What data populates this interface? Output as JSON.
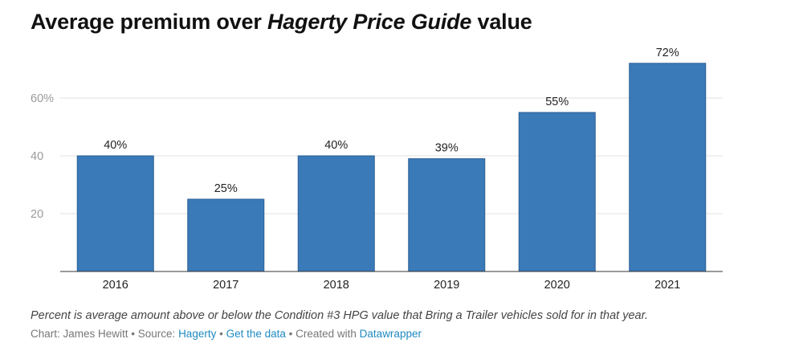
{
  "title": {
    "prefix": "Average premium over ",
    "emphasis": "Hagerty Price Guide",
    "suffix": " value"
  },
  "chart_data": {
    "type": "bar",
    "title": "Average premium over Hagerty Price Guide value",
    "categories": [
      "2016",
      "2017",
      "2018",
      "2019",
      "2020",
      "2021"
    ],
    "values": [
      40,
      25,
      40,
      39,
      55,
      72
    ],
    "value_labels": [
      "40%",
      "25%",
      "40%",
      "39%",
      "55%",
      "72%"
    ],
    "ylim": [
      0,
      75
    ],
    "yticks": [
      20,
      40,
      60
    ],
    "ytick_labels": [
      "20",
      "40",
      "60%"
    ],
    "xlabel": "",
    "ylabel": "",
    "grid": true,
    "bar_color": "#3a7ab8",
    "bar_outline": "#2a5f94"
  },
  "footer": {
    "note": "Percent is average amount above or below the Condition #3 HPG value that Bring a Trailer vehicles sold for in that year.",
    "chart_by": "Chart: James Hewitt",
    "sep1": " • ",
    "source_label": "Source: ",
    "source_link": "Hagerty",
    "sep2": " • ",
    "data_link": "Get the data",
    "sep3": " • ",
    "created_label": "Created with ",
    "created_link": "Datawrapper"
  }
}
